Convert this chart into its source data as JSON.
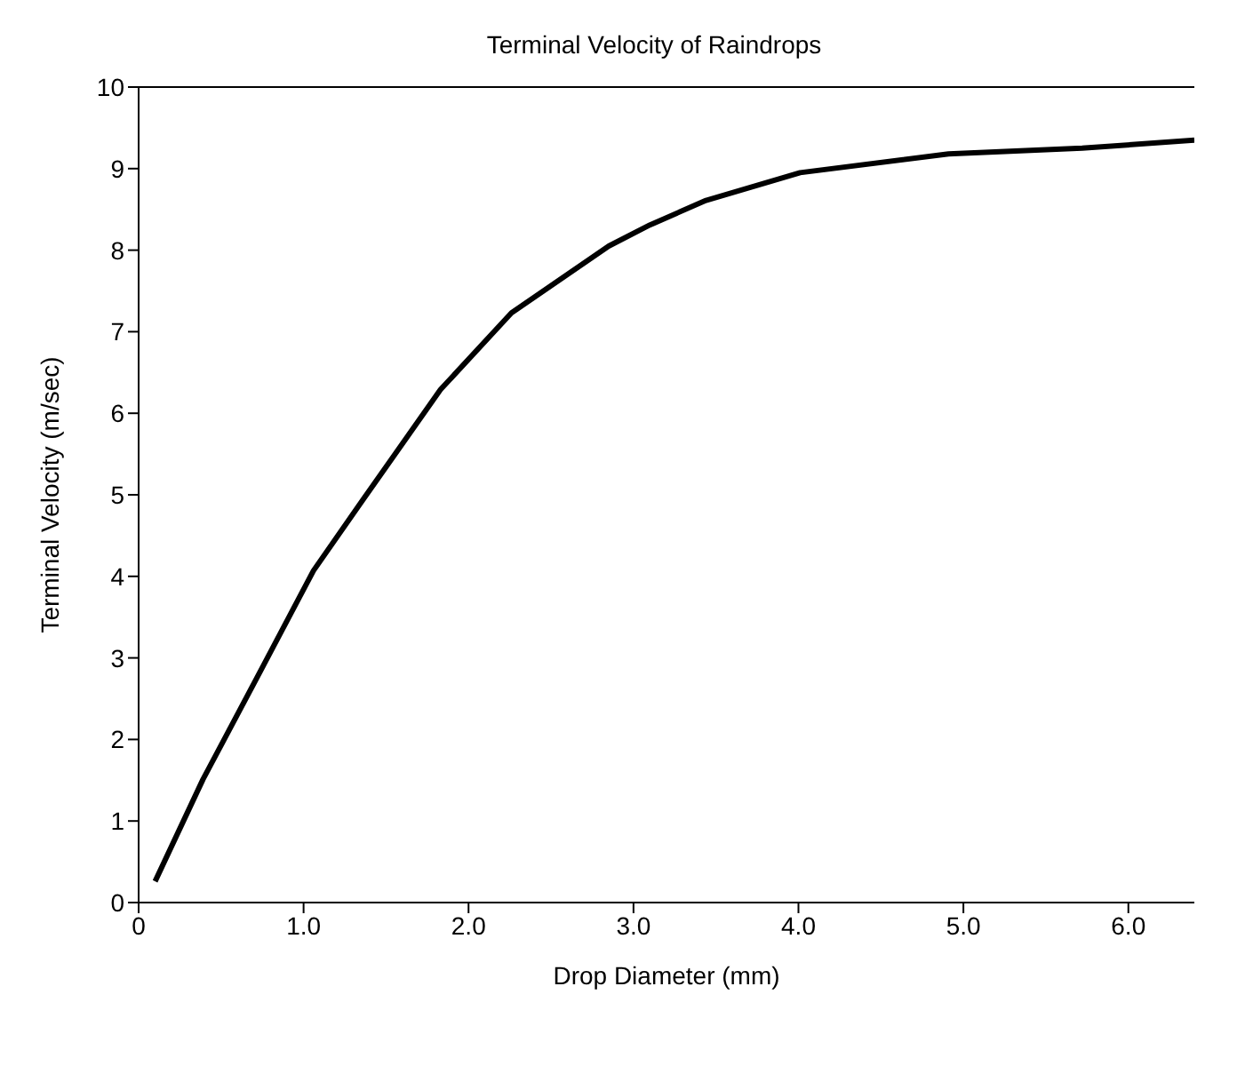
{
  "chart_data": {
    "type": "line",
    "title": "Terminal Velocity of Raindrops",
    "xlabel": "Drop Diameter (mm)",
    "ylabel": "Terminal Velocity (m/sec)",
    "x": [
      0.1,
      0.39,
      0.76,
      1.06,
      1.36,
      1.83,
      2.26,
      2.85,
      3.1,
      3.44,
      4.01,
      4.91,
      5.72,
      6.4
    ],
    "series": [
      {
        "color": "#000000",
        "values": [
          0.26,
          1.51,
          2.92,
          4.07,
          4.94,
          6.29,
          7.23,
          8.05,
          8.31,
          8.61,
          8.95,
          9.18,
          9.25,
          9.35
        ]
      }
    ],
    "xlim": [
      0,
      6.4
    ],
    "xticks": [
      {
        "value": 0,
        "label": "0"
      },
      {
        "value": 1,
        "label": "1.0"
      },
      {
        "value": 2,
        "label": "2.0"
      },
      {
        "value": 3,
        "label": "3.0"
      },
      {
        "value": 4,
        "label": "4.0"
      },
      {
        "value": 5,
        "label": "5.0"
      },
      {
        "value": 6,
        "label": "6.0"
      }
    ],
    "ylim": [
      0,
      10
    ],
    "yticks": [
      0,
      1,
      2,
      3,
      4,
      5,
      6,
      7,
      8,
      9,
      10
    ],
    "grid": false,
    "legend": false,
    "marker": "none",
    "line_style": "solid"
  }
}
